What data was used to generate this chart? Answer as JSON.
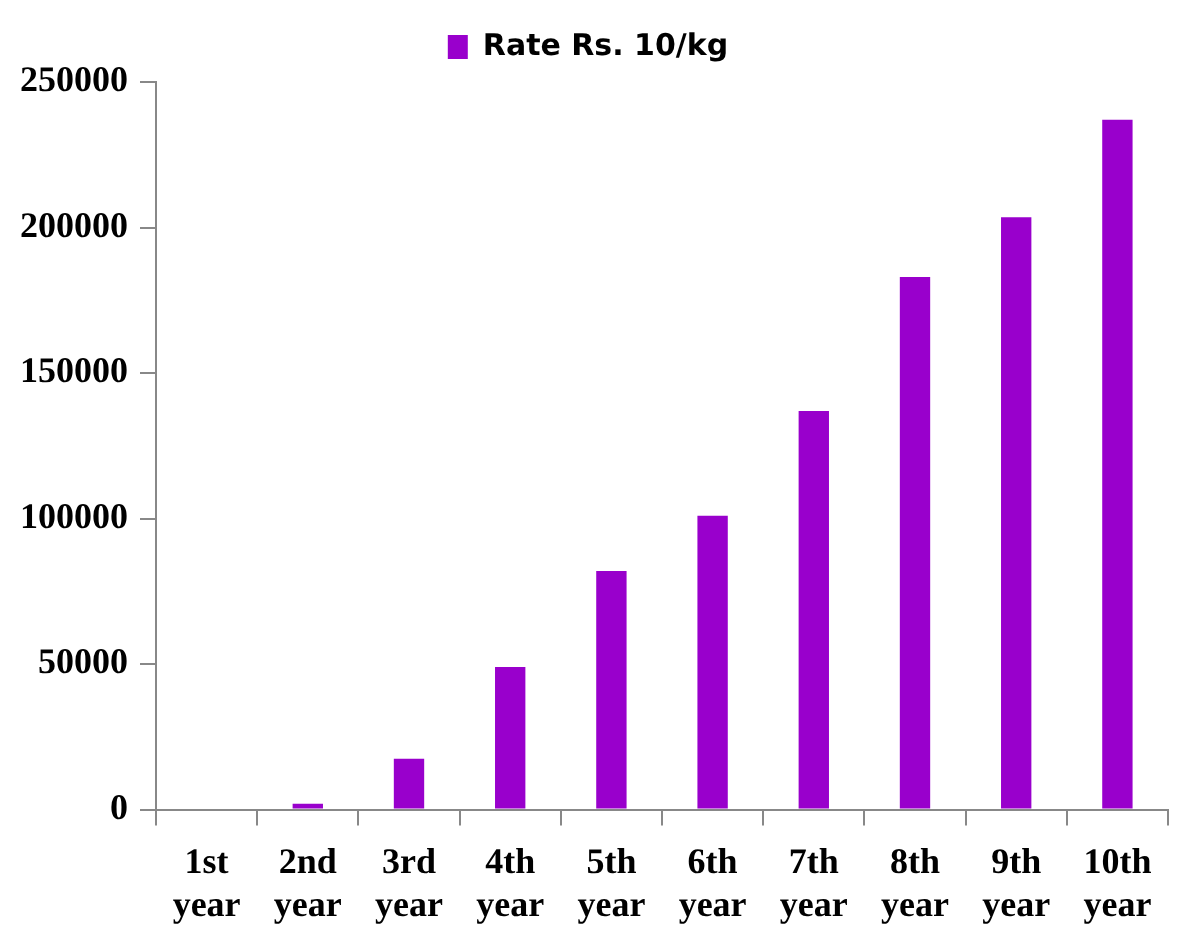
{
  "chart_data": {
    "type": "bar",
    "categories": [
      "1st year",
      "2nd year",
      "3rd year",
      "4th year",
      "5th year",
      "6th year",
      "7th year",
      "8th year",
      "9th year",
      "10th year"
    ],
    "series": [
      {
        "name": "Rate Rs. 10/kg",
        "color": "#9900cc",
        "values": [
          0,
          2000,
          17500,
          49000,
          82000,
          101000,
          137000,
          183000,
          203500,
          237000
        ]
      }
    ],
    "ylim": [
      0,
      250000
    ],
    "yticks": [
      0,
      50000,
      100000,
      150000,
      200000,
      250000
    ],
    "grid": false,
    "legend": "top"
  }
}
